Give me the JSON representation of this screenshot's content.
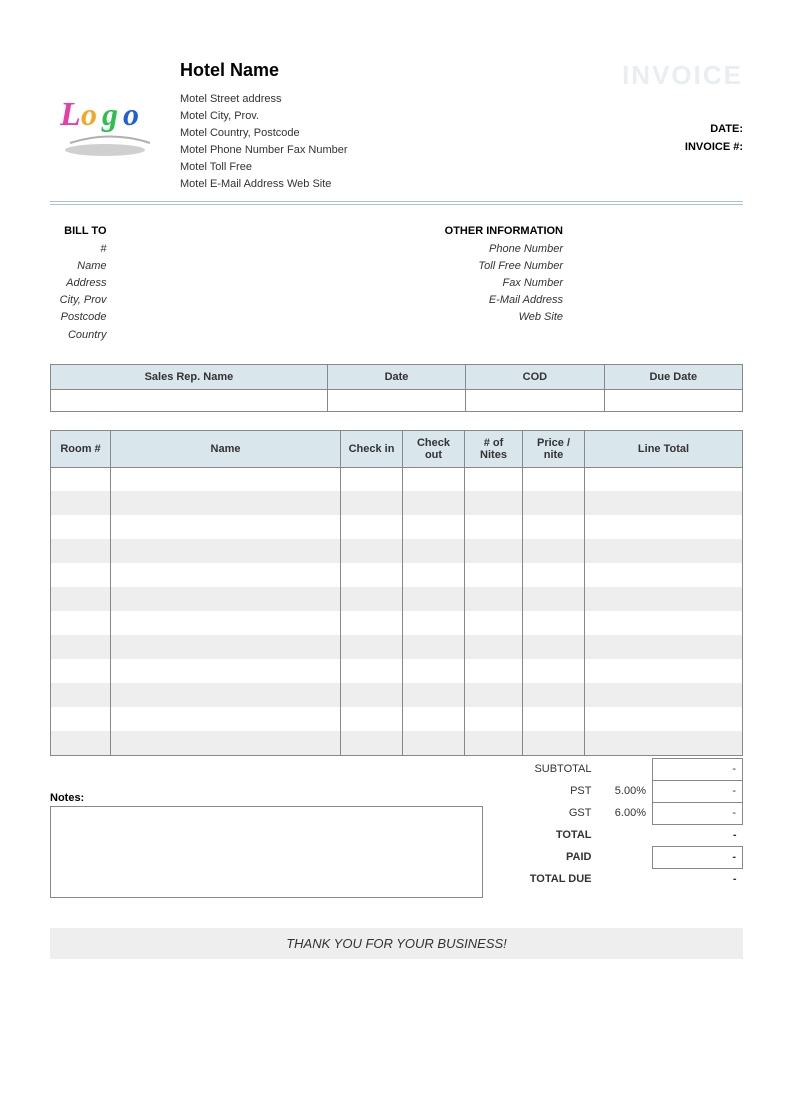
{
  "header": {
    "hotel_name": "Hotel Name",
    "address_lines": [
      "Motel Street address",
      "Motel City, Prov.",
      "Motel Country, Postcode",
      "Motel Phone Number   Fax Number",
      "Motel Toll Free",
      "Motel E-Mail Address   Web Site"
    ],
    "invoice_title": "INVOICE",
    "date_label": "DATE:",
    "invoice_num_label": "INVOICE #:",
    "logo_colors": {
      "l": "#e83ea8",
      "o1": "#f5a623",
      "g": "#2abf4e",
      "o2": "#1e5fd8",
      "swoosh": "#d0d0d0"
    }
  },
  "bill_to": {
    "heading": "BILL TO",
    "lines": [
      "#",
      "Name",
      "Address",
      "City, Prov",
      "Postcode",
      "Country"
    ]
  },
  "other_info": {
    "heading": "OTHER INFORMATION",
    "lines": [
      "Phone Number",
      "Toll Free Number",
      "Fax Number",
      "E-Mail Address",
      "Web Site"
    ]
  },
  "meta_table": {
    "columns": [
      "Sales Rep. Name",
      "Date",
      "COD",
      "Due Date"
    ]
  },
  "items_table": {
    "columns": [
      "Room #",
      "Name",
      "Check in",
      "Check out",
      "# of Nites",
      "Price / nite",
      "Line Total"
    ],
    "row_count": 12,
    "stripe_color": "#eeeeee",
    "header_bg": "#d9e6ec",
    "border_color": "#888888"
  },
  "totals": {
    "subtotal_label": "SUBTOTAL",
    "pst_label": "PST",
    "pst_rate": "5.00%",
    "gst_label": "GST",
    "gst_rate": "6.00%",
    "total_label": "TOTAL",
    "paid_label": "PAID",
    "total_due_label": "TOTAL DUE",
    "dash": "-"
  },
  "notes_label": "Notes:",
  "thanks": "THANK YOU FOR YOUR BUSINESS!"
}
